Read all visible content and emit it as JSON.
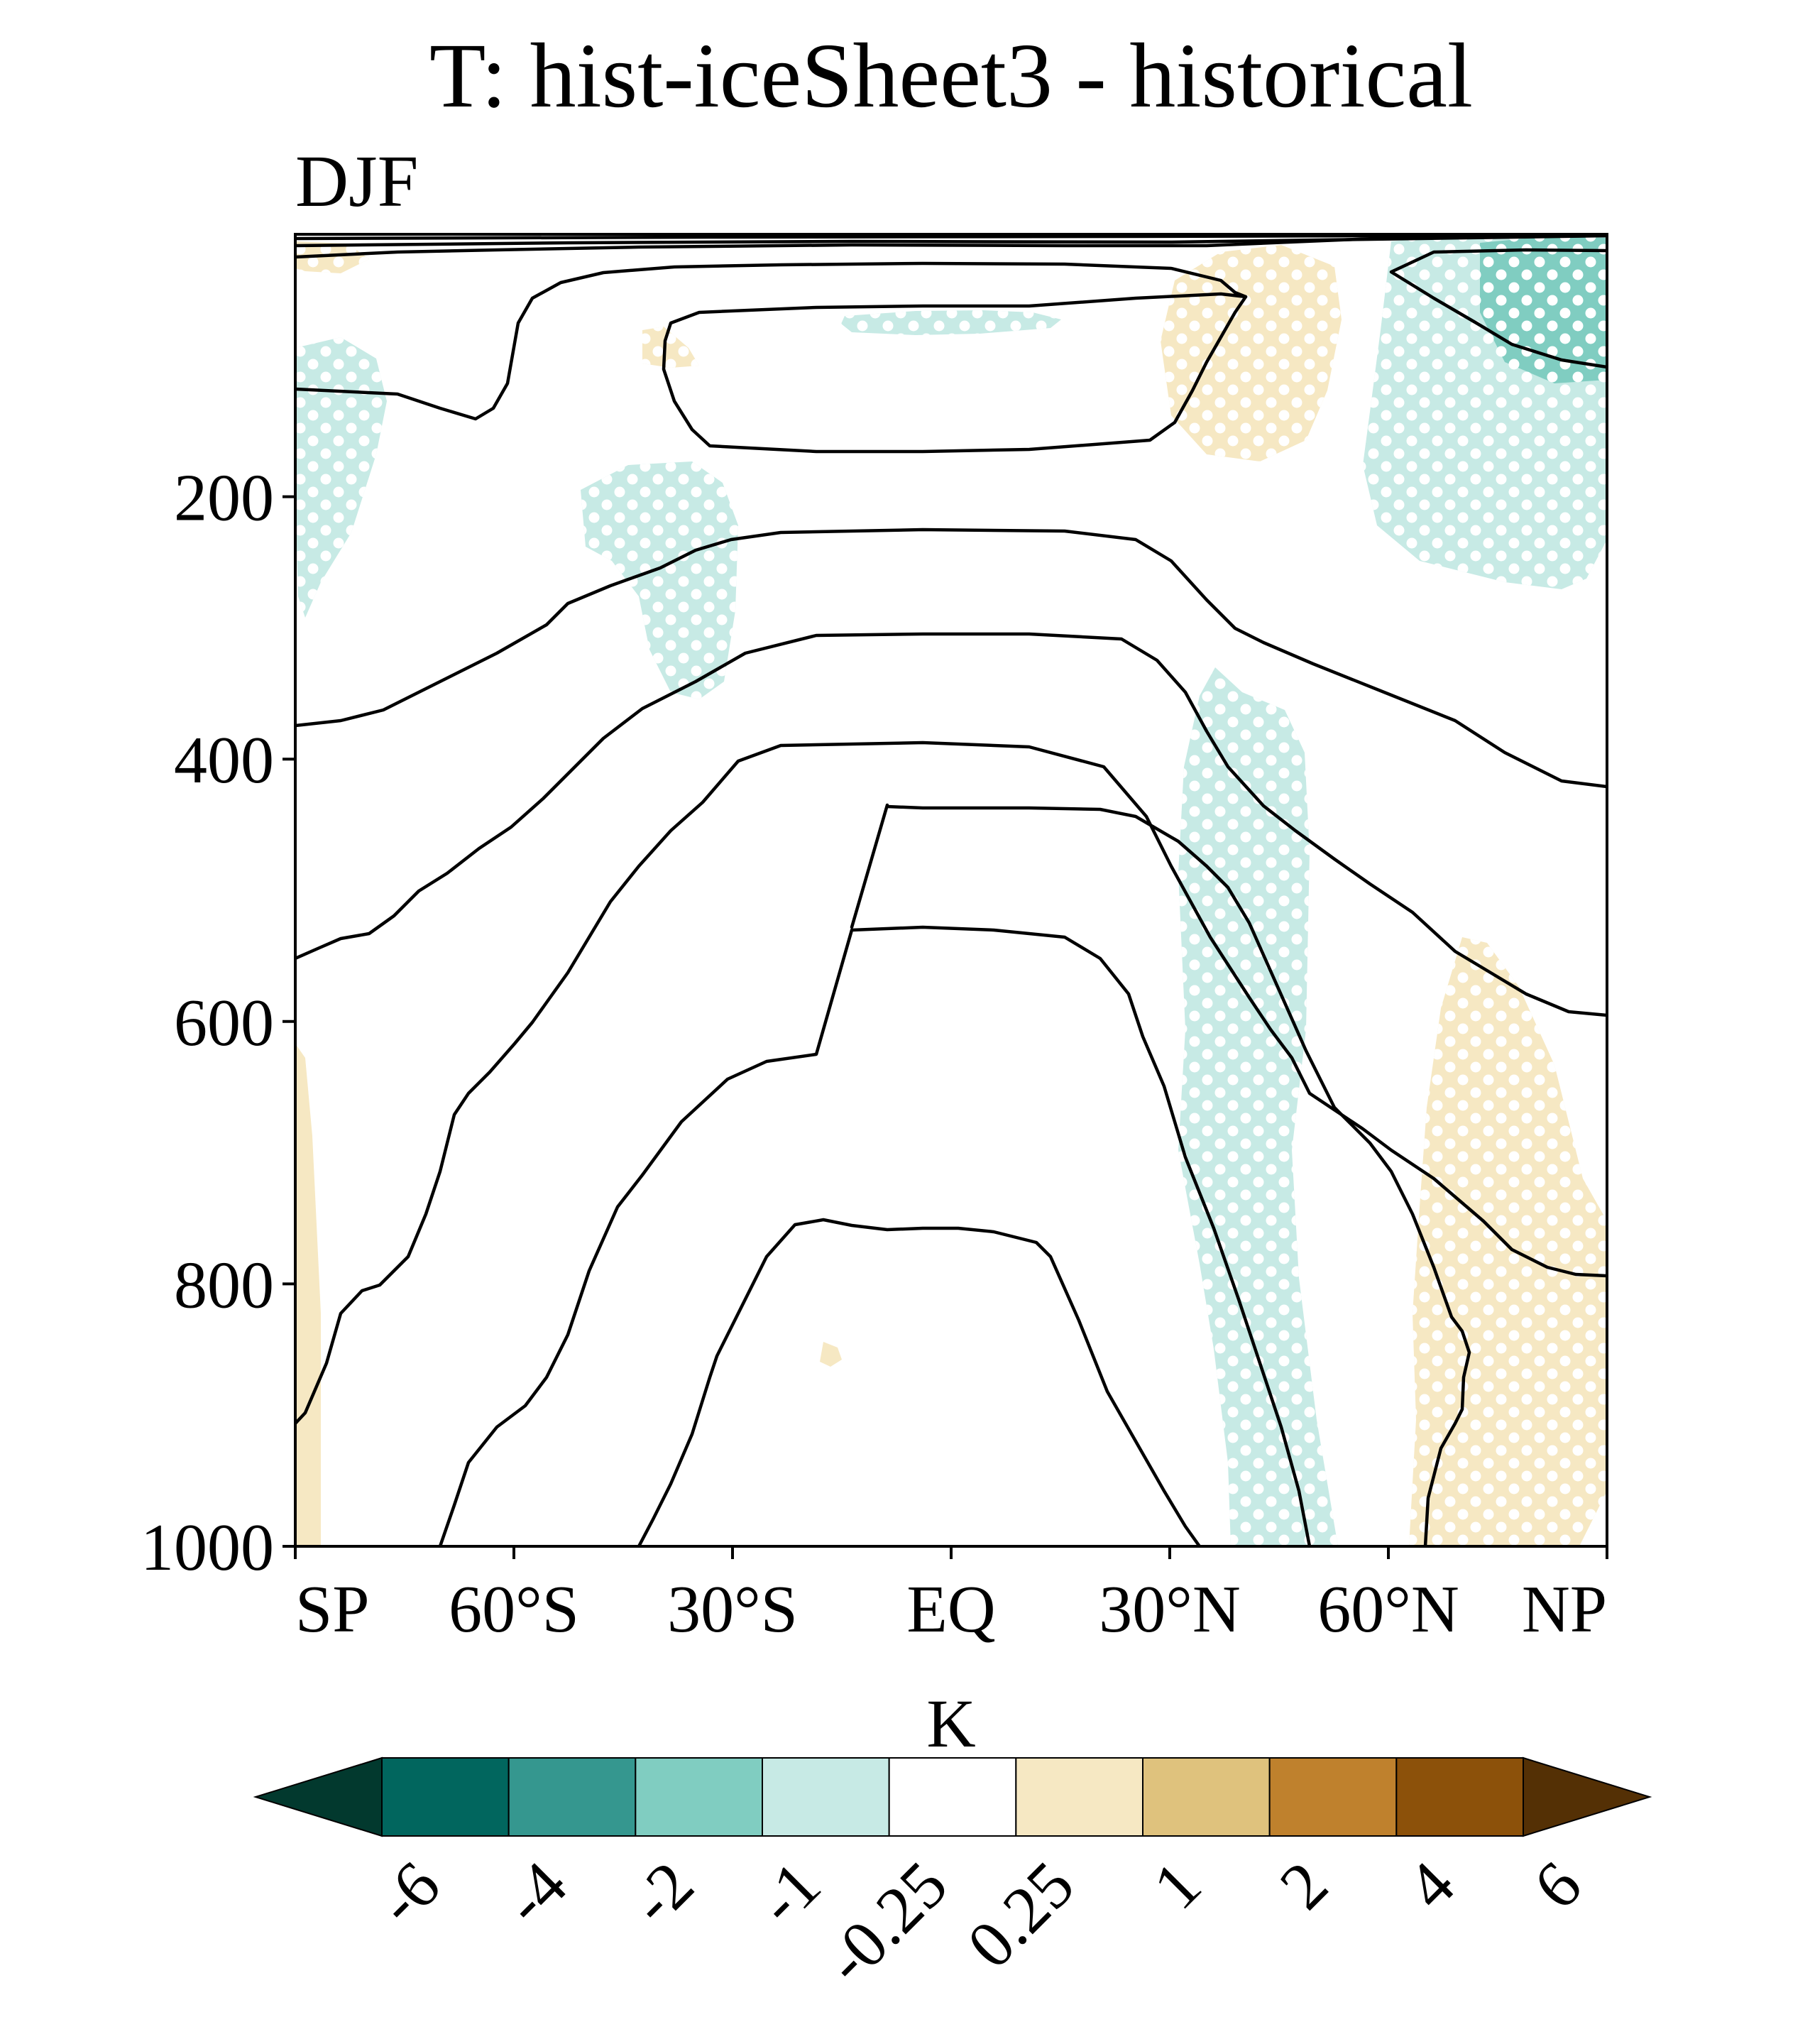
{
  "chart_data": {
    "type": "heatmap",
    "title": "T: hist-iceSheet3 - historical",
    "subtitle": "DJF",
    "xlabel": "",
    "ylabel": "",
    "x_ticks": [
      "SP",
      "60°S",
      "30°S",
      "EQ",
      "30°N",
      "60°N",
      "NP"
    ],
    "x_range": [
      -90,
      90
    ],
    "y_ticks": [
      "200",
      "400",
      "600",
      "800",
      "1000"
    ],
    "y_range": [
      0,
      1000
    ],
    "colorbar": {
      "label": "K",
      "levels": [
        "-6",
        "-4",
        "-2",
        "-1",
        "-0.25",
        "0.25",
        "1",
        "2",
        "4",
        "6"
      ],
      "colors": [
        "#02392e",
        "#01665e",
        "#35978f",
        "#80cdc1",
        "#c7eae5",
        "#ffffff",
        "#f6e8c3",
        "#dfc27d",
        "#bf812d",
        "#8c510a",
        "#543005"
      ]
    },
    "overlays": "black contours of historical mean temperature; white dots mark significant differences"
  }
}
